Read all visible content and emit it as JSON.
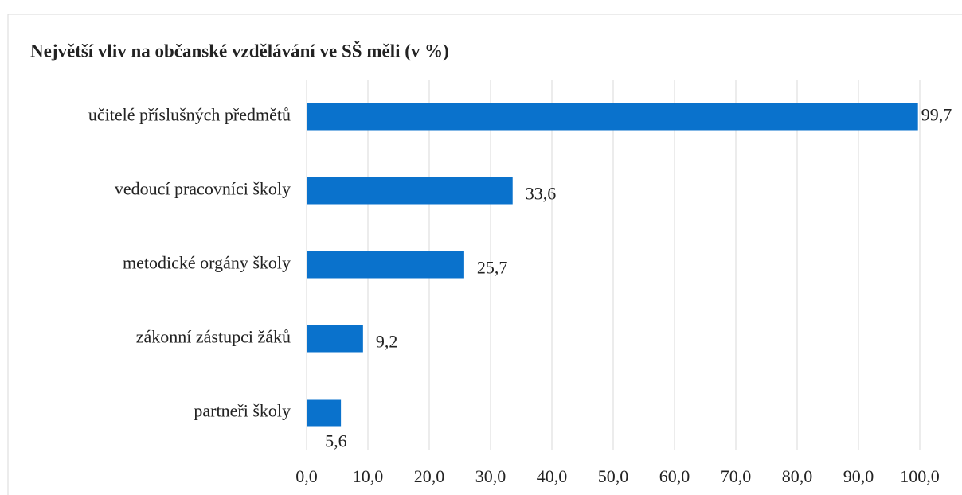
{
  "chart_data": {
    "type": "bar",
    "orientation": "horizontal",
    "title": "Největší vliv na občanské vzdělávání ve SŠ měli (v %)",
    "categories": [
      "učitelé příslušných předmětů",
      "vedoucí pracovníci školy",
      "metodické orgány školy",
      "zákonní zástupci žáků",
      "partneři školy"
    ],
    "values": [
      99.7,
      33.6,
      25.7,
      9.2,
      5.6
    ],
    "value_labels": [
      "99,7",
      "33,6",
      "25,7",
      "9,2",
      "5,6"
    ],
    "color": "#0a72cc",
    "xlim": [
      0,
      100
    ],
    "xticks": [
      {
        "value": 0,
        "label": "0,0"
      },
      {
        "value": 10,
        "label": "10,0"
      },
      {
        "value": 20,
        "label": "20,0"
      },
      {
        "value": 30,
        "label": "30,0"
      },
      {
        "value": 40,
        "label": "40,0"
      },
      {
        "value": 50,
        "label": "50,0"
      },
      {
        "value": 60,
        "label": "60,0"
      },
      {
        "value": 70,
        "label": "70,0"
      },
      {
        "value": 80,
        "label": "80,0"
      },
      {
        "value": 90,
        "label": "90,0"
      },
      {
        "value": 100,
        "label": "100,0"
      }
    ],
    "grid": true
  }
}
